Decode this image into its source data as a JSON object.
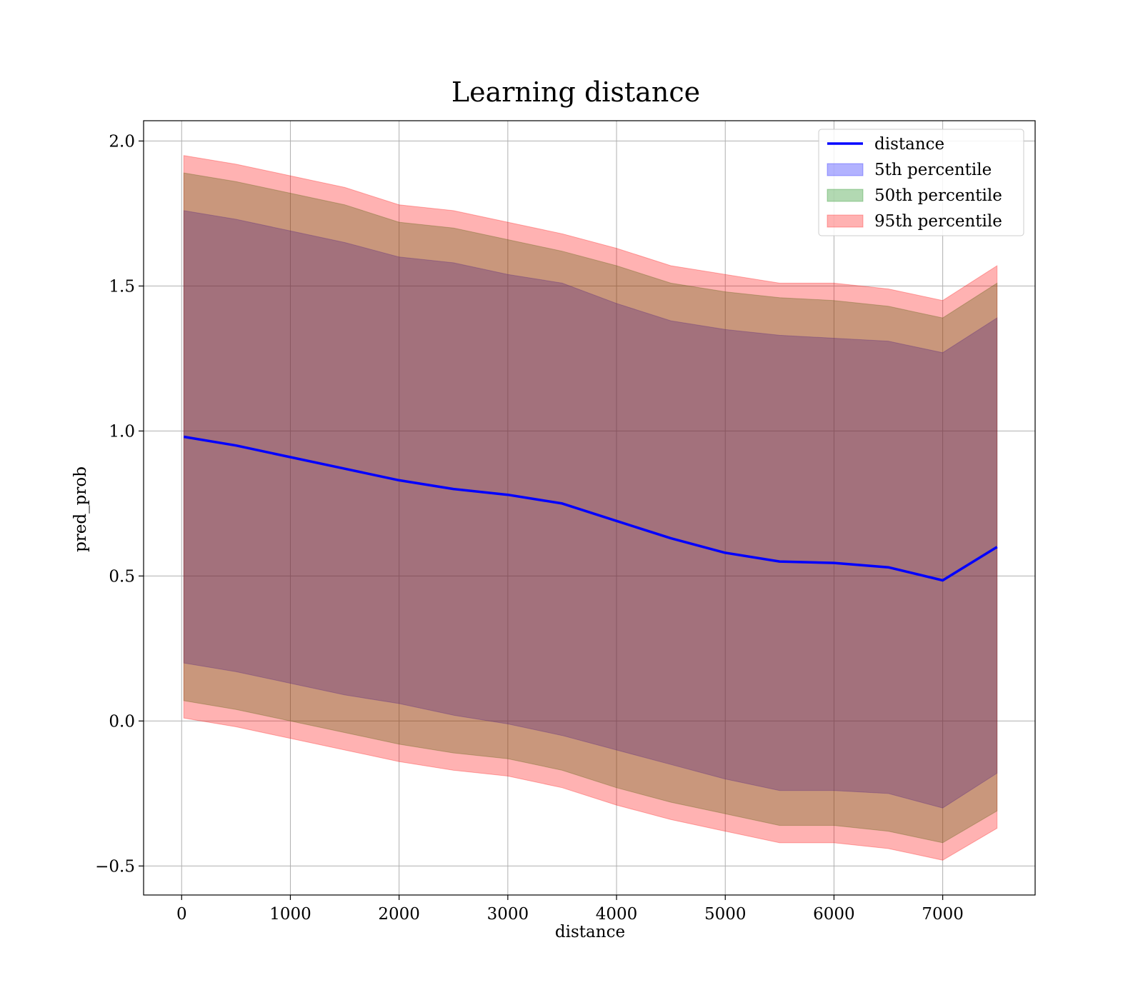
{
  "chart_data": {
    "type": "line",
    "title": "Learning distance",
    "xlabel": "distance",
    "ylabel": "pred_prob",
    "xlim": [
      -350,
      7850
    ],
    "ylim": [
      -0.6,
      2.07
    ],
    "x_ticks": [
      0,
      1000,
      2000,
      3000,
      4000,
      5000,
      6000,
      7000
    ],
    "x_tick_labels": [
      "0",
      "1000",
      "2000",
      "3000",
      "4000",
      "5000",
      "6000",
      "7000"
    ],
    "y_ticks": [
      -0.5,
      0.0,
      0.5,
      1.0,
      1.5,
      2.0
    ],
    "y_tick_labels": [
      "−0.5",
      "0.0",
      "0.5",
      "1.0",
      "1.5",
      "2.0"
    ],
    "grid": true,
    "legend_position": "top-right",
    "colors": {
      "line": "#0000ff",
      "p5": "#0000ff",
      "p50": "#008000",
      "p95": "#ff0000"
    },
    "x": [
      20,
      500,
      1000,
      1500,
      2000,
      2500,
      3000,
      3500,
      4000,
      4500,
      5000,
      5500,
      6000,
      6500,
      7000,
      7500
    ],
    "mean": [
      0.98,
      0.95,
      0.91,
      0.87,
      0.83,
      0.8,
      0.78,
      0.75,
      0.69,
      0.63,
      0.58,
      0.55,
      0.545,
      0.53,
      0.485,
      0.6
    ],
    "series": [
      {
        "name": "distance",
        "kind": "line",
        "values": [
          0.98,
          0.95,
          0.91,
          0.87,
          0.83,
          0.8,
          0.78,
          0.75,
          0.69,
          0.63,
          0.58,
          0.55,
          0.545,
          0.53,
          0.485,
          0.6
        ]
      },
      {
        "name": "5th percentile",
        "kind": "band",
        "upper": [
          1.76,
          1.73,
          1.69,
          1.65,
          1.6,
          1.58,
          1.54,
          1.51,
          1.44,
          1.38,
          1.35,
          1.33,
          1.32,
          1.31,
          1.27,
          1.39
        ],
        "lower": [
          0.2,
          0.17,
          0.13,
          0.09,
          0.06,
          0.02,
          -0.01,
          -0.05,
          -0.1,
          -0.15,
          -0.2,
          -0.24,
          -0.24,
          -0.25,
          -0.3,
          -0.18
        ]
      },
      {
        "name": "50th percentile",
        "kind": "band",
        "upper": [
          1.89,
          1.86,
          1.82,
          1.78,
          1.72,
          1.7,
          1.66,
          1.62,
          1.57,
          1.51,
          1.48,
          1.46,
          1.45,
          1.43,
          1.39,
          1.51
        ],
        "lower": [
          0.07,
          0.04,
          0.0,
          -0.04,
          -0.08,
          -0.11,
          -0.13,
          -0.17,
          -0.23,
          -0.28,
          -0.32,
          -0.36,
          -0.36,
          -0.38,
          -0.42,
          -0.31
        ]
      },
      {
        "name": "95th percentile",
        "kind": "band",
        "upper": [
          1.95,
          1.92,
          1.88,
          1.84,
          1.78,
          1.76,
          1.72,
          1.68,
          1.63,
          1.57,
          1.54,
          1.51,
          1.51,
          1.49,
          1.45,
          1.57
        ],
        "lower": [
          0.01,
          -0.02,
          -0.06,
          -0.1,
          -0.14,
          -0.17,
          -0.19,
          -0.23,
          -0.29,
          -0.34,
          -0.38,
          -0.42,
          -0.42,
          -0.44,
          -0.48,
          -0.37
        ]
      }
    ]
  }
}
